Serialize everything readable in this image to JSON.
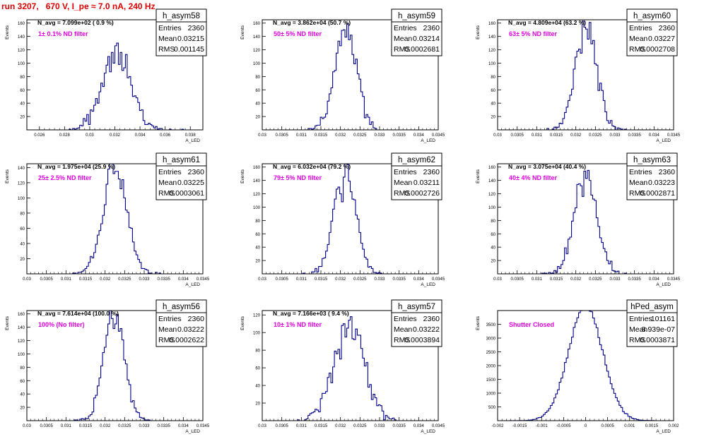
{
  "run_title": "run 3207,   670 V, I_pe ≈ 7.0 nA, 240 Hz",
  "common": {
    "xlabel": "A_LED",
    "ylabel": "Events",
    "line_color": "#00008b",
    "label_color": "#e000e0",
    "title_color": "#dd0000"
  },
  "chart_data": [
    {
      "type": "bar",
      "name": "h_asym58",
      "entries": "2360",
      "mean": "0.03215",
      "rms": "0.001145",
      "navg_label": "N_avg = 7.099e+02 ( 0.9 %)",
      "filter_label": "1± 0.1% ND filter",
      "xlim": [
        0.025,
        0.039
      ],
      "ylim": [
        0,
        165
      ],
      "x_ticks": [
        0.026,
        0.028,
        0.03,
        0.032,
        0.034,
        0.036,
        0.038
      ],
      "x_tick_labels": [
        "0.026",
        "0.028",
        "0.03",
        "0.032",
        "0.034",
        "0.036",
        "0.038"
      ],
      "y_ticks": [
        20,
        40,
        60,
        80,
        100,
        120,
        140,
        160
      ],
      "y_tick_labels": [
        "20",
        "40",
        "60",
        "80",
        "100",
        "120",
        "140",
        "160"
      ],
      "dist": {
        "mu": 0.03215,
        "sigma": 0.001145,
        "n": 2360,
        "bins": 100,
        "seed": 11
      }
    },
    {
      "type": "bar",
      "name": "h_asym59",
      "entries": "2360",
      "mean": "0.03214",
      "rms": "0.0002681",
      "navg_label": "N_avg = 3.862e+04 (50.7 %)",
      "filter_label": "50± 5% ND filter",
      "xlim": [
        0.03,
        0.0345
      ],
      "ylim": [
        0,
        165
      ],
      "x_ticks": [
        0.03,
        0.0305,
        0.031,
        0.0315,
        0.032,
        0.0325,
        0.033,
        0.0335,
        0.034,
        0.0345
      ],
      "x_tick_labels": [
        "0.03",
        "0.0305",
        "0.031",
        "0.0315",
        "0.032",
        "0.0325",
        "0.033",
        "0.0335",
        "0.034",
        "0.0345"
      ],
      "y_ticks": [
        20,
        40,
        60,
        80,
        100,
        120,
        140,
        160
      ],
      "y_tick_labels": [
        "20",
        "40",
        "60",
        "80",
        "100",
        "120",
        "140",
        "160"
      ],
      "dist": {
        "mu": 0.03214,
        "sigma": 0.0002681,
        "n": 2360,
        "bins": 100,
        "seed": 22
      }
    },
    {
      "type": "bar",
      "name": "h_asym60",
      "entries": "2360",
      "mean": "0.03227",
      "rms": "0.0002708",
      "navg_label": "N_avg = 4.809e+04 (63.2 %)",
      "filter_label": "63± 5% ND filter",
      "xlim": [
        0.03,
        0.0345
      ],
      "ylim": [
        0,
        165
      ],
      "x_ticks": [
        0.03,
        0.0305,
        0.031,
        0.0315,
        0.032,
        0.0325,
        0.033,
        0.0335,
        0.034,
        0.0345
      ],
      "x_tick_labels": [
        "0.03",
        "0.0305",
        "0.031",
        "0.0315",
        "0.032",
        "0.0325",
        "0.033",
        "0.0335",
        "0.034",
        "0.0345"
      ],
      "y_ticks": [
        20,
        40,
        60,
        80,
        100,
        120,
        140,
        160
      ],
      "y_tick_labels": [
        "20",
        "40",
        "60",
        "80",
        "100",
        "120",
        "140",
        "160"
      ],
      "dist": {
        "mu": 0.03227,
        "sigma": 0.0002708,
        "n": 2360,
        "bins": 100,
        "seed": 33
      }
    },
    {
      "type": "bar",
      "name": "h_asym61",
      "entries": "2360",
      "mean": "0.03225",
      "rms": "0.0003061",
      "navg_label": "N_avg = 1.975e+04 (25.9 %)",
      "filter_label": "25± 2.5% ND filter",
      "xlim": [
        0.03,
        0.0345
      ],
      "ylim": [
        0,
        145
      ],
      "x_ticks": [
        0.03,
        0.0305,
        0.031,
        0.0315,
        0.032,
        0.0325,
        0.033,
        0.0335,
        0.034,
        0.0345
      ],
      "x_tick_labels": [
        "0.03",
        "0.0305",
        "0.031",
        "0.0315",
        "0.032",
        "0.0325",
        "0.033",
        "0.0335",
        "0.034",
        "0.0345"
      ],
      "y_ticks": [
        20,
        40,
        60,
        80,
        100,
        120,
        140
      ],
      "y_tick_labels": [
        "20",
        "40",
        "60",
        "80",
        "100",
        "120",
        "140"
      ],
      "dist": {
        "mu": 0.03225,
        "sigma": 0.0003061,
        "n": 2360,
        "bins": 100,
        "seed": 44
      }
    },
    {
      "type": "bar",
      "name": "h_asym62",
      "entries": "2360",
      "mean": "0.03211",
      "rms": "0.0002726",
      "navg_label": "N_avg = 6.032e+04 (79.2 %)",
      "filter_label": "79± 5% ND filter",
      "xlim": [
        0.03,
        0.0345
      ],
      "ylim": [
        0,
        165
      ],
      "x_ticks": [
        0.03,
        0.0305,
        0.031,
        0.0315,
        0.032,
        0.0325,
        0.033,
        0.0335,
        0.034,
        0.0345
      ],
      "x_tick_labels": [
        "0.03",
        "0.0305",
        "0.031",
        "0.0315",
        "0.032",
        "0.0325",
        "0.033",
        "0.0335",
        "0.034",
        "0.0345"
      ],
      "y_ticks": [
        20,
        40,
        60,
        80,
        100,
        120,
        140,
        160
      ],
      "y_tick_labels": [
        "20",
        "40",
        "60",
        "80",
        "100",
        "120",
        "140",
        "160"
      ],
      "dist": {
        "mu": 0.03211,
        "sigma": 0.0002726,
        "n": 2360,
        "bins": 100,
        "seed": 55
      }
    },
    {
      "type": "bar",
      "name": "h_asym63",
      "entries": "2360",
      "mean": "0.03223",
      "rms": "0.0002871",
      "navg_label": "N_avg = 3.075e+04 (40.4 %)",
      "filter_label": "40± 4% ND filter",
      "xlim": [
        0.03,
        0.0345
      ],
      "ylim": [
        0,
        165
      ],
      "x_ticks": [
        0.03,
        0.0305,
        0.031,
        0.0315,
        0.032,
        0.0325,
        0.033,
        0.0335,
        0.034,
        0.0345
      ],
      "x_tick_labels": [
        "0.03",
        "0.0305",
        "0.031",
        "0.0315",
        "0.032",
        "0.0325",
        "0.033",
        "0.0335",
        "0.034",
        "0.0345"
      ],
      "y_ticks": [
        20,
        40,
        60,
        80,
        100,
        120,
        140,
        160
      ],
      "y_tick_labels": [
        "20",
        "40",
        "60",
        "80",
        "100",
        "120",
        "140",
        "160"
      ],
      "dist": {
        "mu": 0.03223,
        "sigma": 0.0002871,
        "n": 2360,
        "bins": 100,
        "seed": 66
      }
    },
    {
      "type": "bar",
      "name": "h_asym56",
      "entries": "2360",
      "mean": "0.03222",
      "rms": "0.0002622",
      "navg_label": "N_avg = 7.614e+04 (100.0 %)",
      "filter_label": "100% (No filter)",
      "xlim": [
        0.03,
        0.0345
      ],
      "ylim": [
        0,
        165
      ],
      "x_ticks": [
        0.03,
        0.0305,
        0.031,
        0.0315,
        0.032,
        0.0325,
        0.033,
        0.0335,
        0.034,
        0.0345
      ],
      "x_tick_labels": [
        "0.03",
        "0.0305",
        "0.031",
        "0.0315",
        "0.032",
        "0.0325",
        "0.033",
        "0.0335",
        "0.034",
        "0.0345"
      ],
      "y_ticks": [
        20,
        40,
        60,
        80,
        100,
        120,
        140,
        160
      ],
      "y_tick_labels": [
        "20",
        "40",
        "60",
        "80",
        "100",
        "120",
        "140",
        "160"
      ],
      "dist": {
        "mu": 0.03222,
        "sigma": 0.0002622,
        "n": 2360,
        "bins": 100,
        "seed": 77
      }
    },
    {
      "type": "bar",
      "name": "h_asym57",
      "entries": "2360",
      "mean": "0.03222",
      "rms": "0.0003894",
      "navg_label": "N_avg = 7.166e+03 ( 9.4 %)",
      "filter_label": "10± 1% ND filter",
      "xlim": [
        0.03,
        0.0345
      ],
      "ylim": [
        0,
        125
      ],
      "x_ticks": [
        0.03,
        0.0305,
        0.031,
        0.0315,
        0.032,
        0.0325,
        0.033,
        0.0335,
        0.034,
        0.0345
      ],
      "x_tick_labels": [
        "0.03",
        "0.0305",
        "0.031",
        "0.0315",
        "0.032",
        "0.0325",
        "0.033",
        "0.0335",
        "0.034",
        "0.0345"
      ],
      "y_ticks": [
        20,
        40,
        60,
        80,
        100,
        120
      ],
      "y_tick_labels": [
        "20",
        "40",
        "60",
        "80",
        "100",
        "120"
      ],
      "dist": {
        "mu": 0.03222,
        "sigma": 0.0003894,
        "n": 2360,
        "bins": 100,
        "seed": 88
      }
    },
    {
      "type": "bar",
      "name": "hPed_asym",
      "entries": "101161",
      "mean": "8.939e-07",
      "rms": "0.0003871",
      "navg_label": "",
      "filter_label": "Shutter Closed",
      "xlim": [
        -0.002,
        0.002
      ],
      "ylim": [
        0,
        4000
      ],
      "x_ticks": [
        -0.002,
        -0.0015,
        -0.001,
        -0.0005,
        0,
        0.0005,
        0.001,
        0.0015,
        0.002
      ],
      "x_tick_labels": [
        "-0.002",
        "-0.0015",
        "-0.001",
        "-0.0005",
        "0",
        "0.0005",
        "0.001",
        "0.0015",
        "0.002"
      ],
      "y_ticks": [
        500,
        1000,
        1500,
        2000,
        2500,
        3000,
        3500
      ],
      "y_tick_labels": [
        "500",
        "1000",
        "1500",
        "2000",
        "2500",
        "3000",
        "3500"
      ],
      "dist": {
        "mu": 9e-07,
        "sigma": 0.0003871,
        "n": 101161,
        "bins": 100,
        "seed": 99
      }
    }
  ]
}
